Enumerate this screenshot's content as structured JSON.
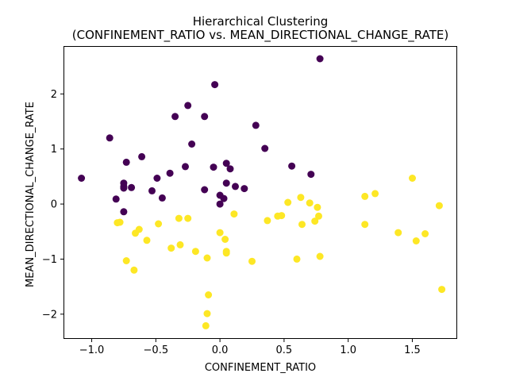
{
  "chart_data": {
    "type": "scatter",
    "title_lines": [
      "Hierarchical Clustering",
      "(CONFINEMENT_RATIO vs. MEAN_DIRECTIONAL_CHANGE_RATE)"
    ],
    "xlabel": "CONFINEMENT_RATIO",
    "ylabel": "MEAN_DIRECTIONAL_CHANGE_RATE",
    "xlim": [
      -1.22,
      1.85
    ],
    "ylim": [
      -2.45,
      2.87
    ],
    "xticks": [
      -1.0,
      -0.5,
      0.0,
      0.5,
      1.0,
      1.5
    ],
    "xtick_labels": [
      "−1.0",
      "−0.5",
      "0.0",
      "0.5",
      "1.0",
      "1.5"
    ],
    "yticks": [
      -2,
      -1,
      0,
      1,
      2
    ],
    "ytick_labels": [
      "−2",
      "−1",
      "0",
      "1",
      "2"
    ],
    "grid": false,
    "legend": "none",
    "series": [
      {
        "color": "#440154",
        "points": [
          [
            -1.08,
            0.47
          ],
          [
            -0.86,
            1.2
          ],
          [
            -0.81,
            0.09
          ],
          [
            -0.75,
            0.29
          ],
          [
            -0.75,
            0.32
          ],
          [
            -0.75,
            0.38
          ],
          [
            -0.73,
            0.76
          ],
          [
            -0.75,
            -0.14
          ],
          [
            -0.69,
            0.3
          ],
          [
            -0.61,
            0.86
          ],
          [
            -0.53,
            0.24
          ],
          [
            -0.49,
            0.47
          ],
          [
            -0.45,
            0.11
          ],
          [
            -0.39,
            0.56
          ],
          [
            -0.35,
            1.59
          ],
          [
            -0.27,
            0.68
          ],
          [
            -0.25,
            1.79
          ],
          [
            -0.22,
            1.09
          ],
          [
            -0.12,
            1.59
          ],
          [
            -0.12,
            0.26
          ],
          [
            -0.04,
            2.17
          ],
          [
            -0.05,
            0.67
          ],
          [
            0.0,
            0.16
          ],
          [
            0.0,
            0.0
          ],
          [
            0.03,
            0.1
          ],
          [
            0.05,
            0.74
          ],
          [
            0.05,
            0.38
          ],
          [
            0.08,
            0.64
          ],
          [
            0.12,
            0.32
          ],
          [
            0.19,
            0.28
          ],
          [
            0.28,
            1.43
          ],
          [
            0.35,
            1.01
          ],
          [
            0.56,
            0.69
          ],
          [
            0.71,
            0.54
          ],
          [
            0.78,
            2.64
          ]
        ]
      },
      {
        "color": "#fde725",
        "points": [
          [
            -0.8,
            -0.34
          ],
          [
            -0.78,
            -0.33
          ],
          [
            -0.73,
            -1.03
          ],
          [
            -0.67,
            -1.2
          ],
          [
            -0.66,
            -0.53
          ],
          [
            -0.63,
            -0.46
          ],
          [
            -0.57,
            -0.66
          ],
          [
            -0.48,
            -0.36
          ],
          [
            -0.38,
            -0.8
          ],
          [
            -0.32,
            -0.26
          ],
          [
            -0.31,
            -0.74
          ],
          [
            -0.25,
            -0.26
          ],
          [
            -0.19,
            -0.86
          ],
          [
            -0.1,
            -0.98
          ],
          [
            -0.09,
            -1.65
          ],
          [
            -0.1,
            -1.99
          ],
          [
            -0.11,
            -2.21
          ],
          [
            0.0,
            -0.52
          ],
          [
            0.04,
            -0.64
          ],
          [
            0.05,
            -0.86
          ],
          [
            0.05,
            -0.89
          ],
          [
            0.11,
            -0.18
          ],
          [
            0.25,
            -1.04
          ],
          [
            0.37,
            -0.3
          ],
          [
            0.45,
            -0.22
          ],
          [
            0.48,
            -0.21
          ],
          [
            0.53,
            0.03
          ],
          [
            0.6,
            -1.0
          ],
          [
            0.63,
            0.12
          ],
          [
            0.64,
            -0.37
          ],
          [
            0.7,
            0.02
          ],
          [
            0.74,
            -0.31
          ],
          [
            0.76,
            -0.06
          ],
          [
            0.77,
            -0.22
          ],
          [
            0.78,
            -0.95
          ],
          [
            1.13,
            0.14
          ],
          [
            1.13,
            -0.37
          ],
          [
            1.21,
            0.19
          ],
          [
            1.39,
            -0.52
          ],
          [
            1.5,
            0.47
          ],
          [
            1.53,
            -0.67
          ],
          [
            1.6,
            -0.54
          ],
          [
            1.71,
            -0.03
          ],
          [
            1.73,
            -1.55
          ]
        ]
      }
    ]
  }
}
